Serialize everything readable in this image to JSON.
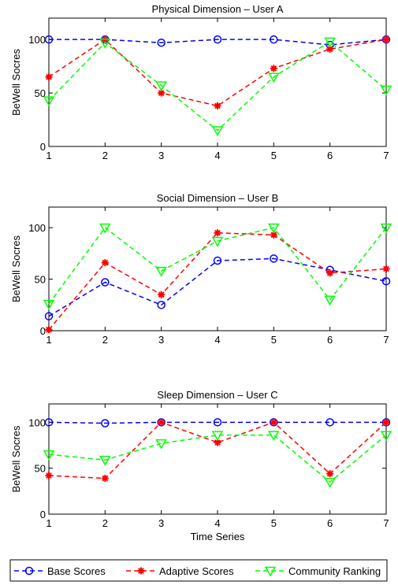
{
  "chart_data": [
    {
      "type": "line",
      "title": "Physical Dimension – User A",
      "xlabel": "",
      "ylabel": "BeWell Socres",
      "x": [
        1,
        2,
        3,
        4,
        5,
        6,
        7
      ],
      "xlim": [
        1,
        7
      ],
      "ylim": [
        0,
        120
      ],
      "yticks": [
        0,
        50,
        100
      ],
      "grid": false,
      "series": [
        {
          "name": "Base Scores",
          "color": "#0000ff",
          "marker": "circle",
          "values": [
            100,
            100,
            97,
            100,
            100,
            95,
            100
          ]
        },
        {
          "name": "Adaptive Scores",
          "color": "#ff0000",
          "marker": "star",
          "values": [
            65,
            100,
            50,
            38,
            73,
            91,
            100
          ]
        },
        {
          "name": "Community Ranking",
          "color": "#00ff00",
          "marker": "triangle-down",
          "values": [
            43,
            97,
            57,
            15,
            65,
            98,
            53
          ]
        }
      ]
    },
    {
      "type": "line",
      "title": "Social Dimension – User B",
      "xlabel": "",
      "ylabel": "BeWell Socres",
      "x": [
        1,
        2,
        3,
        4,
        5,
        6,
        7
      ],
      "xlim": [
        1,
        7
      ],
      "ylim": [
        0,
        120
      ],
      "yticks": [
        0,
        50,
        100
      ],
      "grid": false,
      "series": [
        {
          "name": "Base Scores",
          "color": "#0000ff",
          "marker": "circle",
          "values": [
            14,
            47,
            25,
            68,
            70,
            59,
            48
          ]
        },
        {
          "name": "Adaptive Scores",
          "color": "#ff0000",
          "marker": "star",
          "values": [
            1,
            66,
            35,
            95,
            93,
            56,
            60
          ]
        },
        {
          "name": "Community Ranking",
          "color": "#00ff00",
          "marker": "triangle-down",
          "values": [
            26,
            100,
            58,
            87,
            100,
            30,
            100
          ]
        }
      ]
    },
    {
      "type": "line",
      "title": "Sleep Dimension – User C",
      "xlabel": "Time Series",
      "ylabel": "BeWell Socres",
      "x": [
        1,
        2,
        3,
        4,
        5,
        6,
        7
      ],
      "xlim": [
        1,
        7
      ],
      "ylim": [
        0,
        120
      ],
      "yticks": [
        0,
        50,
        100
      ],
      "grid": false,
      "series": [
        {
          "name": "Base Scores",
          "color": "#0000ff",
          "marker": "circle",
          "values": [
            100,
            99,
            100,
            100,
            100,
            100,
            100
          ]
        },
        {
          "name": "Adaptive Scores",
          "color": "#ff0000",
          "marker": "star",
          "values": [
            42,
            39,
            100,
            78,
            100,
            44,
            100
          ]
        },
        {
          "name": "Community Ranking",
          "color": "#00ff00",
          "marker": "triangle-down",
          "values": [
            65,
            59,
            77,
            86,
            86,
            35,
            86
          ]
        }
      ]
    }
  ],
  "legend": {
    "placement": "bottom",
    "entries": [
      "Base Scores",
      "Adaptive Scores",
      "Community Ranking"
    ]
  }
}
